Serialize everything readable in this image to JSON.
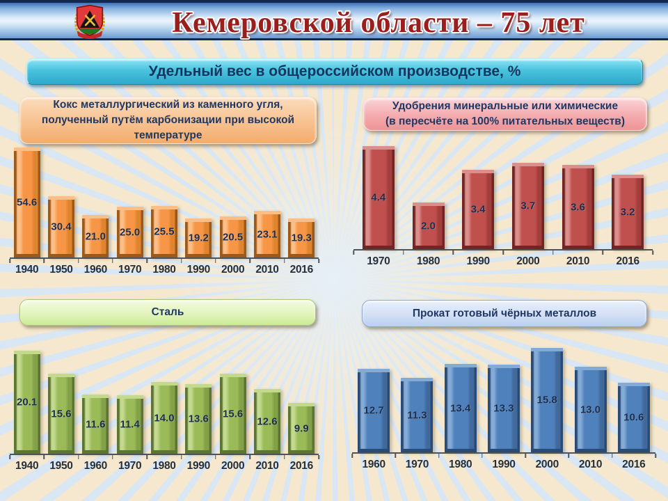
{
  "header": {
    "title": "Кемеровской области – 75 лет",
    "emblem_icon": "kemerovo-coat-of-arms"
  },
  "banner": {
    "text": "Удельный вес в общероссийском производстве, %"
  },
  "chart_data": [
    {
      "id": "coke",
      "type": "bar",
      "title": "Кокс металлургический из каменного угля,\nполученный путём карбонизации при высокой\nтемпературе",
      "categories": [
        "1940",
        "1950",
        "1960",
        "1970",
        "1980",
        "1990",
        "2000",
        "2010",
        "2016"
      ],
      "values": [
        54.6,
        30.4,
        21.0,
        25.0,
        25.5,
        19.2,
        20.5,
        23.1,
        19.3
      ],
      "unit": "%",
      "ylim": [
        0,
        60
      ],
      "grid": false,
      "legend": false,
      "data_labels": "inside-center",
      "colors": {
        "face": "#F79646",
        "lite": "#FBBE86",
        "mid": "#E0842E",
        "dark": "#9C591C"
      }
    },
    {
      "id": "fertilizers",
      "type": "bar",
      "title": "Удобрения минеральные или химические\n(в пересчёте на 100% питательных веществ)",
      "categories": [
        "1970",
        "1980",
        "1990",
        "2000",
        "2010",
        "2016"
      ],
      "values": [
        4.4,
        2.0,
        3.4,
        3.7,
        3.6,
        3.2
      ],
      "unit": "%",
      "ylim": [
        0,
        4.8
      ],
      "grid": false,
      "legend": false,
      "data_labels": "inside-center",
      "colors": {
        "face": "#C0504D",
        "lite": "#DB8E8B",
        "mid": "#A23F3C",
        "dark": "#702624"
      }
    },
    {
      "id": "steel",
      "type": "bar",
      "title": "Сталь",
      "categories": [
        "1940",
        "1950",
        "1960",
        "1970",
        "1980",
        "1990",
        "2000",
        "2010",
        "2016"
      ],
      "values": [
        20.1,
        15.6,
        11.6,
        11.4,
        14.0,
        13.6,
        15.6,
        12.6,
        9.9
      ],
      "unit": "%",
      "ylim": [
        0,
        22
      ],
      "grid": false,
      "legend": false,
      "data_labels": "inside-center",
      "colors": {
        "face": "#9BBB59",
        "lite": "#C2D98E",
        "mid": "#83A148",
        "dark": "#5C7532"
      }
    },
    {
      "id": "rolled-metal",
      "type": "bar",
      "title": "Прокат готовый чёрных металлов",
      "categories": [
        "1960",
        "1970",
        "1980",
        "1990",
        "2000",
        "2010",
        "2016"
      ],
      "values": [
        12.7,
        11.3,
        13.4,
        13.3,
        15.8,
        13.0,
        10.6
      ],
      "unit": "%",
      "ylim": [
        0,
        17
      ],
      "grid": false,
      "legend": false,
      "data_labels": "inside-center",
      "colors": {
        "face": "#4F81BD",
        "lite": "#84ABD6",
        "mid": "#41699B",
        "dark": "#2B4A74"
      }
    }
  ]
}
